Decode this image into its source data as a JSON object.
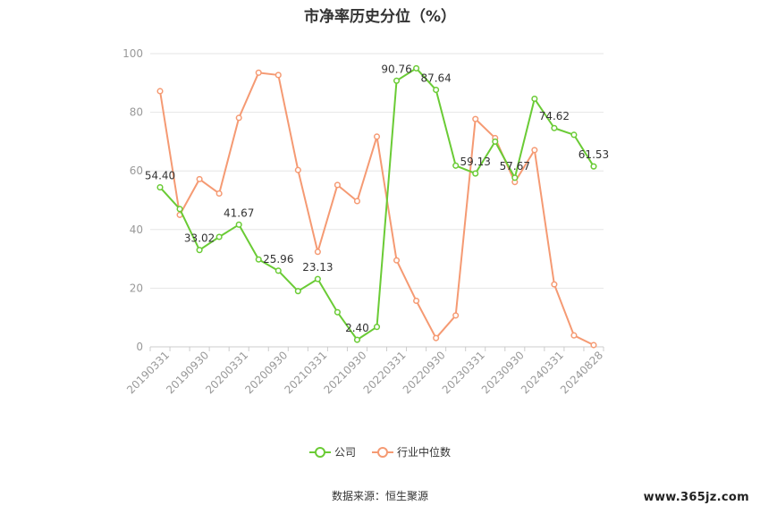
{
  "chart_data": {
    "type": "line",
    "title": "市净率历史分位（%）",
    "ylim": [
      0,
      100
    ],
    "yticks": [
      0,
      20,
      40,
      60,
      80,
      100
    ],
    "xtick_labels": [
      "20190331",
      "20190930",
      "20200331",
      "20200930",
      "20210331",
      "20210930",
      "20220331",
      "20220930",
      "20230331",
      "20230930",
      "20240331",
      "20240828"
    ],
    "grid": true,
    "legend_position": "bottom",
    "series": [
      {
        "name": "公司",
        "color": "#6acb35",
        "values": [
          54.4,
          47.0,
          33.02,
          37.5,
          41.67,
          29.8,
          25.96,
          19.0,
          23.13,
          11.8,
          2.4,
          6.8,
          90.76,
          95.0,
          87.64,
          61.8,
          59.13,
          70.0,
          57.67,
          84.6,
          74.62,
          72.3,
          61.53
        ],
        "labels": [
          "54.40",
          "",
          "33.02",
          "",
          "41.67",
          "",
          "25.96",
          "",
          "23.13",
          "",
          "2.40",
          "",
          "90.76",
          "",
          "87.64",
          "",
          "59.13",
          "",
          "57.67",
          "",
          "74.62",
          "",
          "61.53"
        ]
      },
      {
        "name": "行业中位数",
        "color": "#f59a73",
        "values": [
          87.2,
          45.0,
          57.2,
          52.3,
          78.1,
          93.5,
          92.7,
          60.3,
          32.4,
          55.2,
          49.7,
          71.7,
          29.5,
          15.7,
          3.0,
          10.7,
          77.7,
          71.2,
          56.2,
          67.1,
          21.3,
          3.9,
          0.6
        ]
      }
    ]
  },
  "legend": {
    "company": "公司",
    "industry": "行业中位数"
  },
  "source": "数据来源：恒生聚源",
  "watermark": "www.365jz.com"
}
